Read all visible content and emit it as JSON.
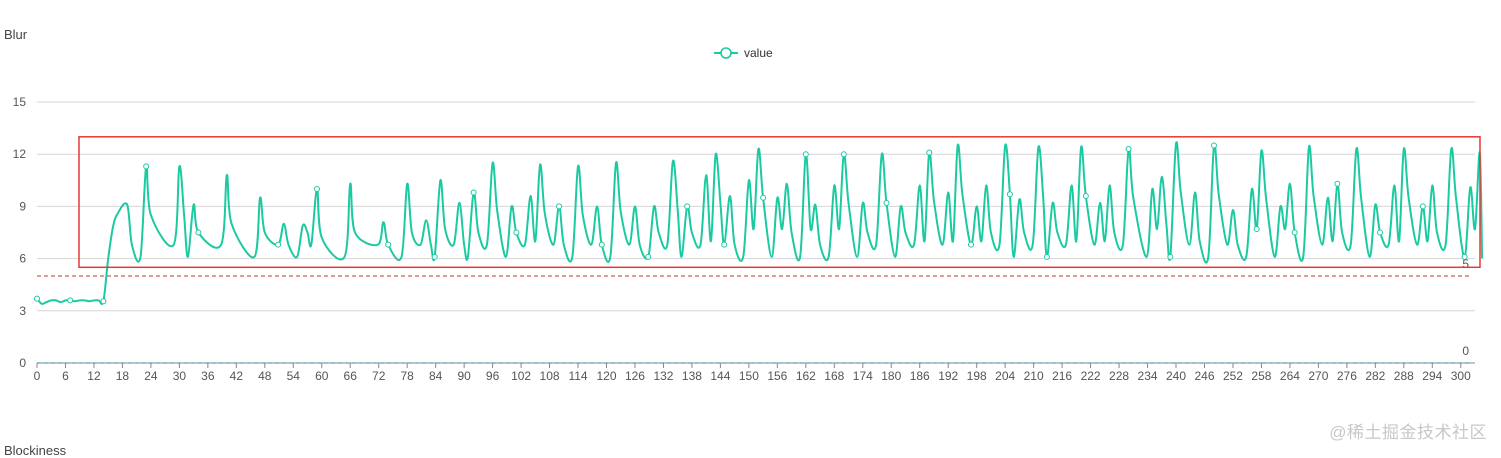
{
  "chart_data": {
    "type": "line",
    "title": "Blur",
    "legend": {
      "entries": [
        "value"
      ],
      "position": "top-center"
    },
    "series": [
      {
        "name": "value",
        "color": "#1ccaa1"
      }
    ],
    "ylim": [
      0,
      15
    ],
    "yticks": [
      0,
      3,
      6,
      9,
      12,
      15
    ],
    "xlim": [
      0,
      303
    ],
    "xticks": [
      0,
      6,
      12,
      18,
      24,
      30,
      36,
      42,
      48,
      54,
      60,
      66,
      72,
      78,
      84,
      90,
      96,
      102,
      108,
      114,
      120,
      126,
      132,
      138,
      144,
      150,
      156,
      162,
      168,
      174,
      180,
      186,
      192,
      198,
      204,
      210,
      216,
      222,
      228,
      234,
      240,
      246,
      252,
      258,
      264,
      270,
      276,
      282,
      288,
      294,
      300
    ],
    "grid": true,
    "reference_lines": [
      {
        "value": 5,
        "label": "5",
        "color": "#c23531",
        "style": "dashed"
      },
      {
        "value": 0,
        "label": "0",
        "color": "#1f8fb0",
        "style": "dashed"
      }
    ],
    "highlight_box": {
      "x_range": [
        5,
        303
      ],
      "y_range": [
        5.5,
        13
      ],
      "color": "#e53935"
    },
    "baseline": {
      "x_range": [
        0,
        14
      ],
      "value": 3.6
    },
    "oscillation": {
      "x_start": 18,
      "peaks": [
        [
          19,
          9.1
        ],
        [
          23,
          11.3
        ],
        [
          30,
          11.3
        ],
        [
          33,
          9.1
        ],
        [
          40,
          10.8
        ],
        [
          47,
          9.5
        ],
        [
          52,
          8.0
        ],
        [
          56,
          7.9
        ],
        [
          59,
          10.0
        ],
        [
          66,
          10.3
        ],
        [
          73,
          8.1
        ],
        [
          78,
          10.3
        ],
        [
          82,
          8.2
        ],
        [
          85,
          10.5
        ],
        [
          89,
          9.2
        ],
        [
          92,
          9.8
        ],
        [
          96,
          11.5
        ],
        [
          100,
          9.0
        ],
        [
          104,
          9.6
        ],
        [
          106,
          11.4
        ],
        [
          110,
          9.0
        ],
        [
          114,
          11.3
        ],
        [
          118,
          9.0
        ],
        [
          122,
          11.5
        ],
        [
          126,
          9.0
        ],
        [
          130,
          9.0
        ],
        [
          134,
          11.6
        ],
        [
          137,
          9.0
        ],
        [
          141,
          10.8
        ],
        [
          143,
          12.0
        ],
        [
          146,
          9.6
        ],
        [
          150,
          10.5
        ],
        [
          152,
          12.3
        ],
        [
          156,
          9.5
        ],
        [
          158,
          10.3
        ],
        [
          162,
          12.0
        ],
        [
          164,
          9.1
        ],
        [
          168,
          10.2
        ],
        [
          170,
          12.0
        ],
        [
          174,
          9.2
        ],
        [
          178,
          12.0
        ],
        [
          182,
          9.0
        ],
        [
          186,
          10.2
        ],
        [
          188,
          12.1
        ],
        [
          192,
          9.8
        ],
        [
          194,
          12.5
        ],
        [
          198,
          9.0
        ],
        [
          200,
          10.2
        ],
        [
          204,
          12.5
        ],
        [
          207,
          9.4
        ],
        [
          211,
          12.4
        ],
        [
          214,
          9.2
        ],
        [
          218,
          10.2
        ],
        [
          220,
          12.4
        ],
        [
          224,
          9.2
        ],
        [
          226,
          10.2
        ],
        [
          230,
          12.3
        ],
        [
          235,
          10.0
        ],
        [
          237,
          10.7
        ],
        [
          240,
          12.6
        ],
        [
          244,
          9.8
        ],
        [
          248,
          12.5
        ],
        [
          252,
          8.8
        ],
        [
          256,
          10.0
        ],
        [
          258,
          12.2
        ],
        [
          262,
          9.0
        ],
        [
          264,
          10.3
        ],
        [
          268,
          12.4
        ],
        [
          272,
          9.5
        ],
        [
          274,
          10.3
        ],
        [
          278,
          12.3
        ],
        [
          282,
          9.1
        ],
        [
          286,
          10.2
        ],
        [
          288,
          12.3
        ],
        [
          292,
          9.0
        ],
        [
          294,
          10.2
        ],
        [
          298,
          12.3
        ],
        [
          302,
          10.1
        ],
        [
          304,
          12.1
        ]
      ],
      "troughs": [
        6.1,
        6.8
      ]
    }
  }
}
